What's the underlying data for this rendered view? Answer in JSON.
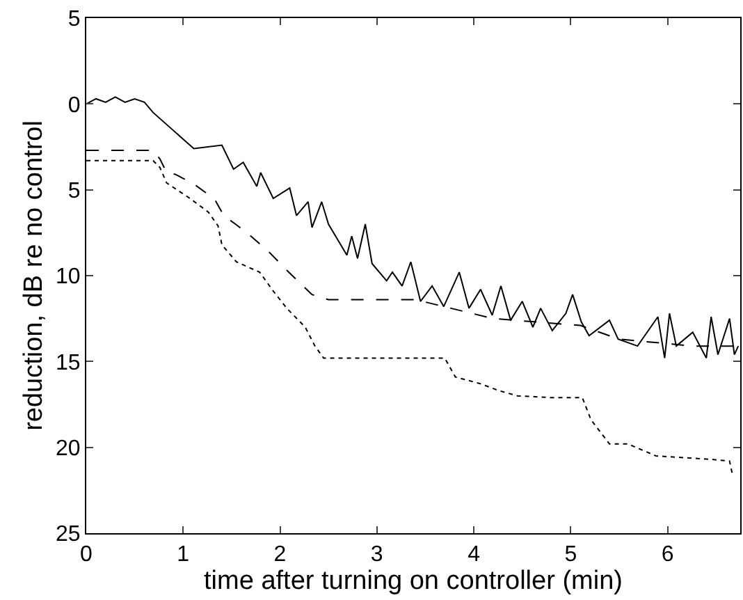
{
  "chart_data": {
    "type": "line",
    "xlabel": "time after turning on controller (min)",
    "ylabel": "reduction, dB re no control",
    "xlim": [
      0,
      6.75
    ],
    "xticks": [
      0,
      1,
      2,
      3,
      4,
      5,
      6
    ],
    "ylim": [
      25,
      -5
    ],
    "yticks": [
      {
        "value": -5,
        "label": "5"
      },
      0,
      5,
      10,
      15,
      20,
      25
    ],
    "grid": false,
    "marker": "none",
    "series": [
      {
        "color": "#000000",
        "line_style": "solid",
        "x": [
          0,
          0.1,
          0.2,
          0.3,
          0.4,
          0.5,
          0.6,
          0.69,
          0.97,
          1.11,
          1.4,
          1.52,
          1.62,
          1.76,
          1.8,
          1.93,
          2.1,
          2.17,
          2.29,
          2.33,
          2.43,
          2.5,
          2.69,
          2.74,
          2.8,
          2.88,
          2.95,
          3.1,
          3.16,
          3.26,
          3.35,
          3.45,
          3.57,
          3.69,
          3.85,
          3.95,
          4.07,
          4.19,
          4.28,
          4.38,
          4.5,
          4.61,
          4.69,
          4.81,
          4.95,
          5.02,
          5.11,
          5.19,
          5.4,
          5.49,
          5.69,
          5.9,
          5.97,
          6.02,
          6.09,
          6.26,
          6.4,
          6.45,
          6.52,
          6.64,
          6.69,
          6.73
        ],
        "values": [
          0,
          -0.3,
          -0.1,
          -0.4,
          -0.1,
          -0.3,
          -0.1,
          0.5,
          1.9,
          2.6,
          2.4,
          3.8,
          3.4,
          4.8,
          4,
          5.5,
          4.9,
          6.5,
          5.7,
          7.2,
          5.7,
          7,
          8.8,
          7.7,
          9,
          7,
          9.3,
          10.3,
          9.8,
          10.6,
          9.2,
          11.5,
          10.6,
          11.8,
          9.8,
          11.9,
          10.8,
          12.3,
          10.6,
          12.6,
          11.5,
          13,
          11.9,
          13.2,
          12.2,
          11.1,
          12.7,
          13.5,
          12.6,
          13.7,
          14.1,
          12.4,
          14.8,
          12.2,
          14.1,
          13.3,
          14.8,
          12.4,
          14.6,
          12.5,
          14.6,
          14.1
        ]
      },
      {
        "color": "#000000",
        "line_style": "dashed",
        "x": [
          0,
          0.69,
          0.76,
          0.83,
          0.92,
          1.12,
          1.24,
          1.33,
          1.42,
          1.54,
          1.68,
          1.9,
          2.09,
          2.33,
          2.5,
          3.4,
          4.2,
          5.1,
          5.5,
          6.26,
          6.73
        ],
        "values": [
          2.7,
          2.7,
          3.2,
          4,
          4.1,
          4.7,
          5.2,
          5.6,
          6.5,
          7,
          7.6,
          8.7,
          9.8,
          11.1,
          11.4,
          11.4,
          12.5,
          12.9,
          13.7,
          14.1,
          14.1
        ]
      },
      {
        "color": "#000000",
        "line_style": "dotted",
        "x": [
          0,
          0.69,
          0.76,
          0.83,
          1.07,
          1.26,
          1.36,
          1.4,
          1.55,
          1.79,
          1.93,
          2.07,
          2.26,
          2.36,
          2.45,
          3.7,
          3.81,
          4.07,
          4.26,
          4.45,
          4.79,
          5.12,
          5.21,
          5.4,
          5.59,
          5.88,
          6.45,
          6.64,
          6.67
        ],
        "values": [
          3.3,
          3.3,
          3.7,
          4.6,
          5.5,
          6.3,
          7.1,
          8.2,
          9.2,
          9.8,
          10.9,
          11.9,
          13,
          14.1,
          14.8,
          14.8,
          15.9,
          16.3,
          16.7,
          17,
          17.1,
          17.1,
          18.4,
          19.8,
          19.8,
          20.5,
          20.7,
          20.8,
          21.6
        ]
      }
    ]
  }
}
